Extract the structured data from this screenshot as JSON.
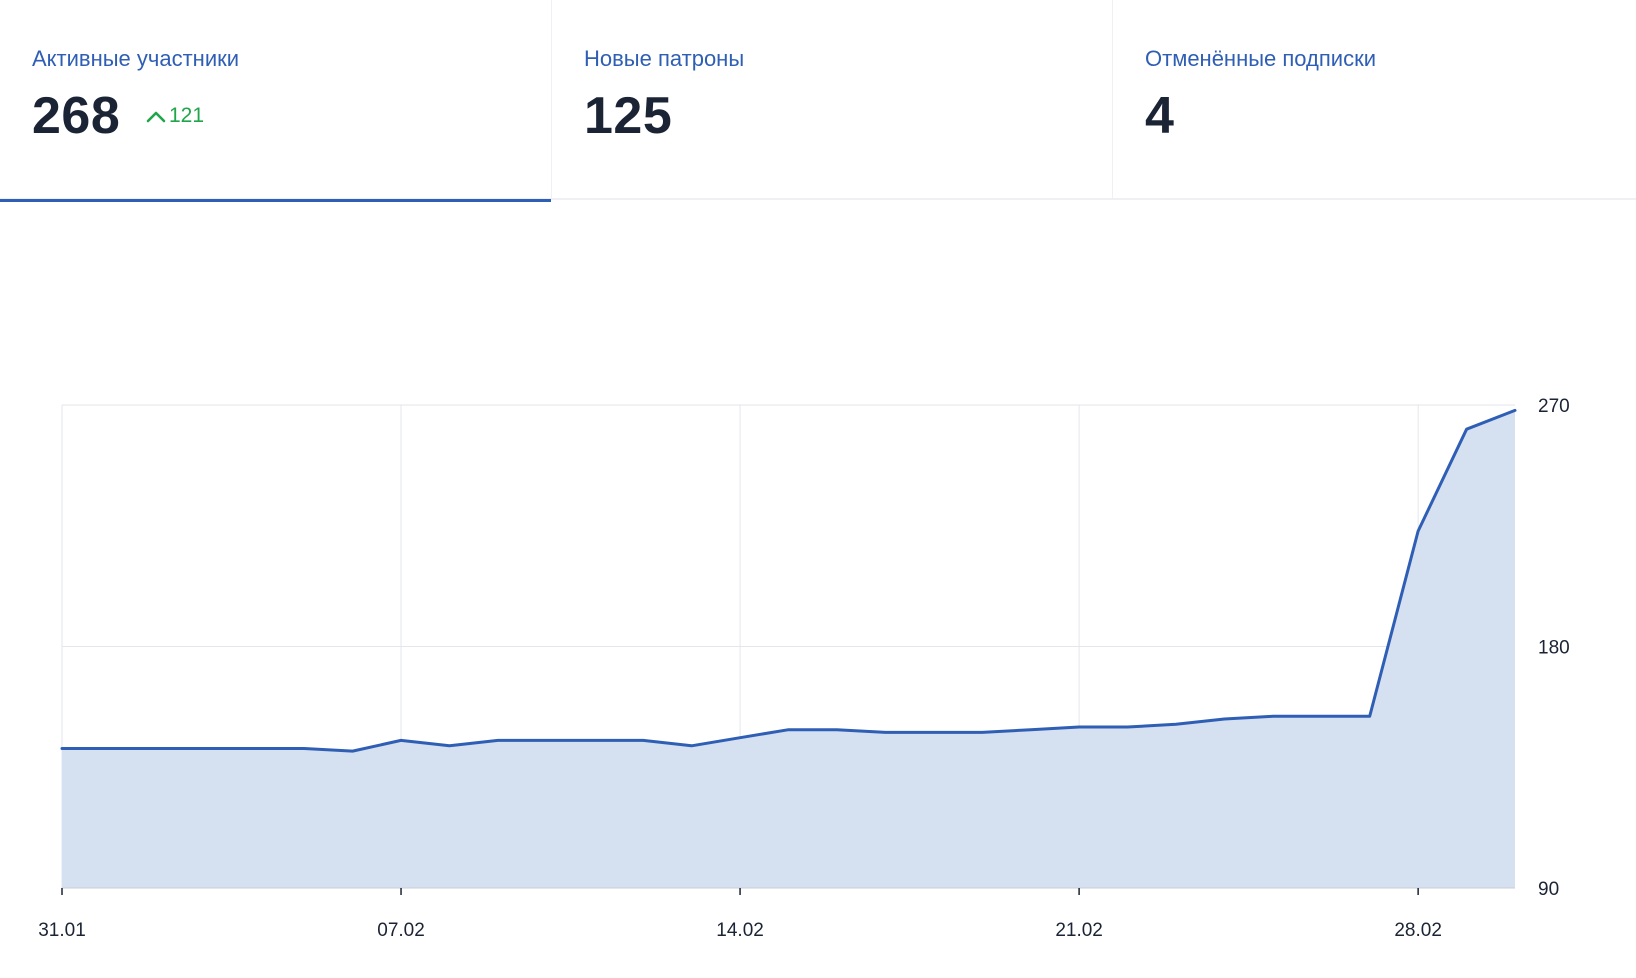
{
  "tabs": [
    {
      "label": "Активные участники",
      "value": "268",
      "delta": "121",
      "active": true
    },
    {
      "label": "Новые патроны",
      "value": "125",
      "active": false
    },
    {
      "label": "Отменённые подписки",
      "value": "4",
      "active": false
    }
  ],
  "colors": {
    "accent": "#2f5eb5",
    "positive": "#1fa64a",
    "area_fill": "#d5e0f0",
    "grid": "#e3e6ec",
    "text": "#1b2435"
  },
  "chart_data": {
    "type": "area",
    "title": "Активные участники",
    "xlabel": "",
    "ylabel": "",
    "ylim": [
      90,
      270
    ],
    "y_ticks": [
      90,
      180,
      270
    ],
    "x_tick_labels": [
      "31.01",
      "07.02",
      "14.02",
      "21.02",
      "28.02"
    ],
    "x_tick_positions": [
      0,
      7,
      14,
      21,
      28
    ],
    "xlim": [
      0,
      30
    ],
    "series": [
      {
        "name": "Активные участники",
        "x": [
          0,
          1,
          2,
          3,
          4,
          5,
          6,
          7,
          8,
          9,
          10,
          11,
          12,
          13,
          14,
          15,
          16,
          17,
          18,
          19,
          20,
          21,
          22,
          23,
          24,
          25,
          26,
          27,
          28,
          29,
          30
        ],
        "values": [
          142,
          142,
          142,
          142,
          142,
          142,
          141,
          145,
          143,
          145,
          145,
          145,
          145,
          143,
          146,
          149,
          149,
          148,
          148,
          148,
          149,
          150,
          150,
          151,
          153,
          154,
          154,
          154,
          223,
          261,
          268
        ]
      }
    ]
  }
}
